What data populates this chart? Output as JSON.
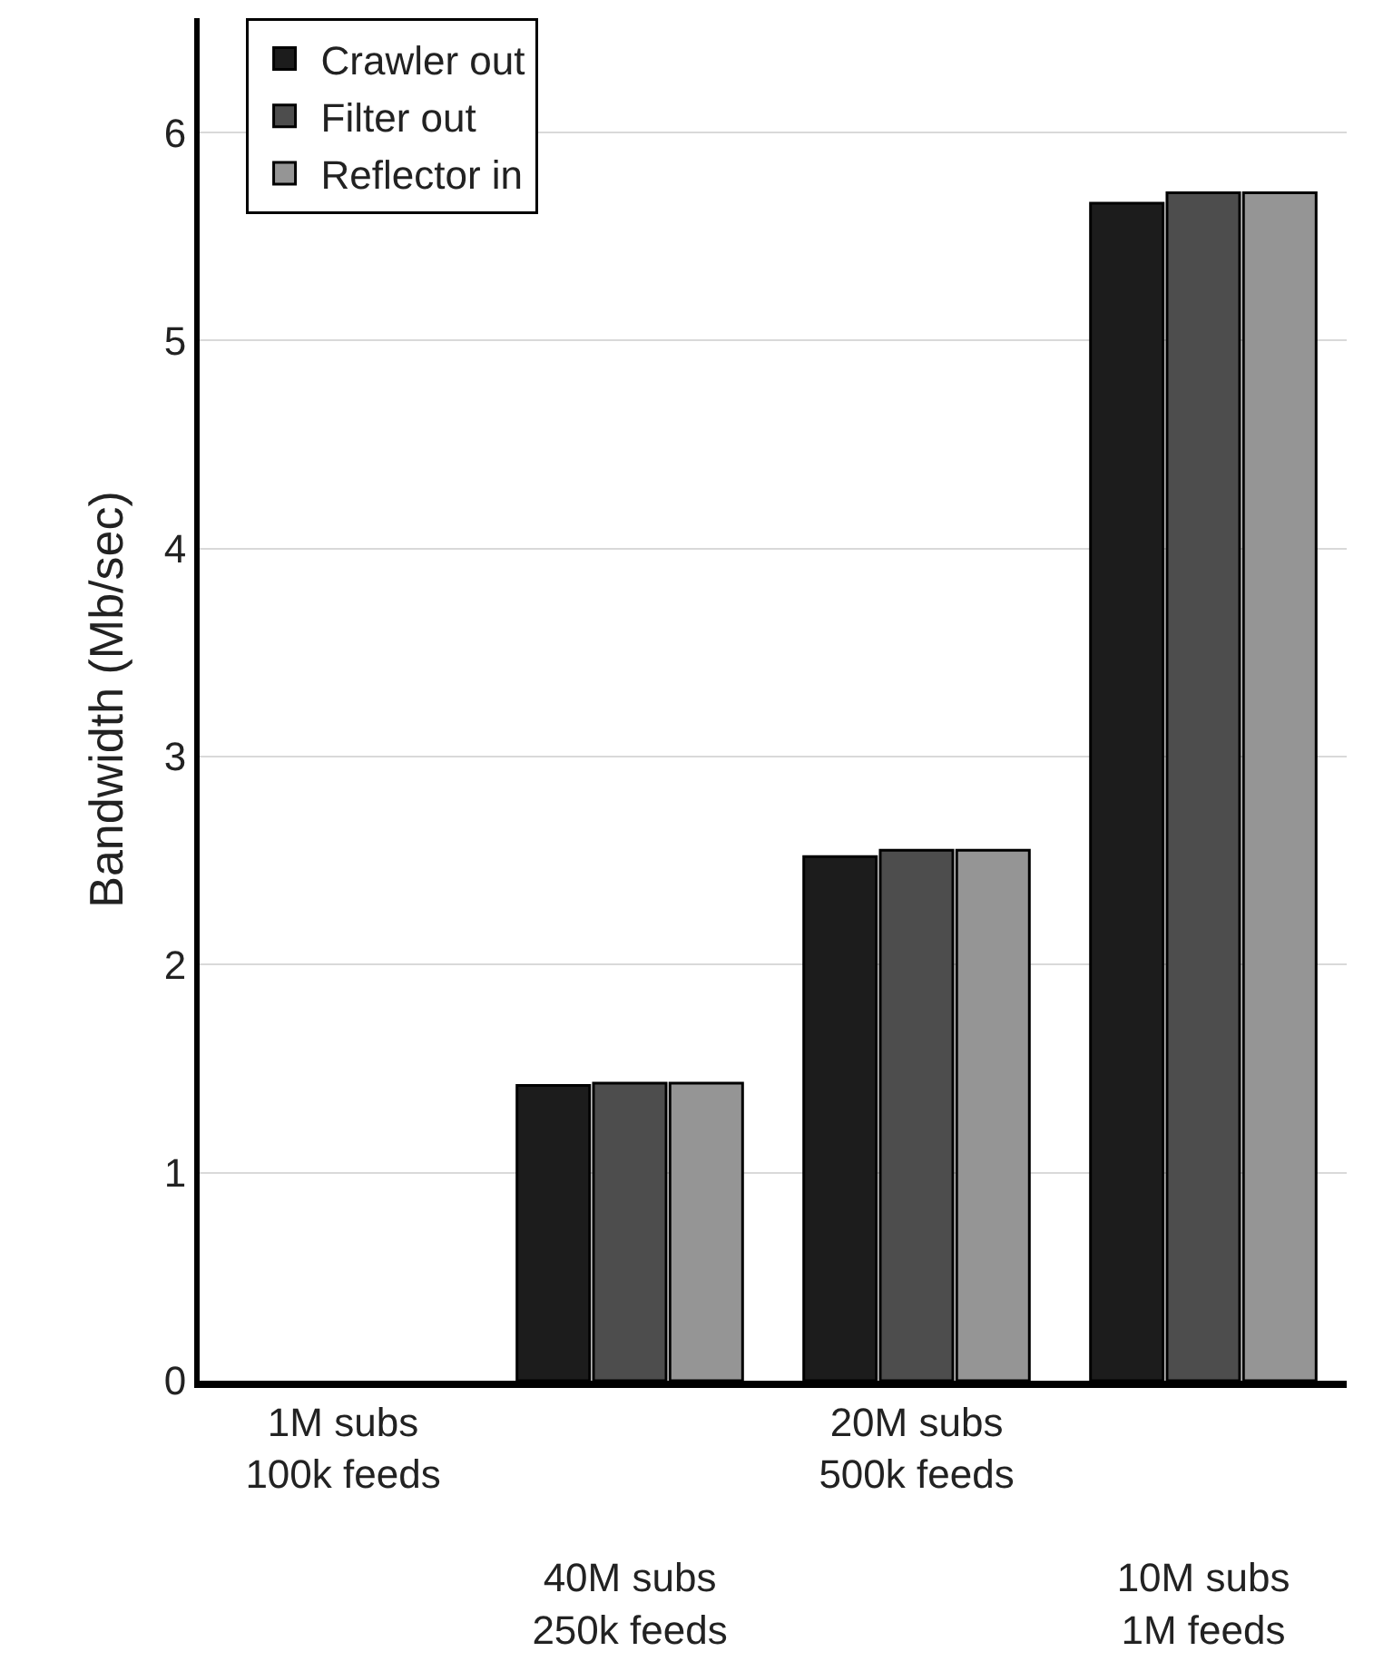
{
  "chart_data": {
    "type": "bar",
    "ylabel": "Bandwidth (Mb/sec)",
    "categories": [
      "1M subs\n100k feeds",
      "40M subs\n250k feeds",
      "20M subs\n500k feeds",
      "10M subs\n1M feeds"
    ],
    "series": [
      {
        "name": "Crawler out",
        "color": "#1c1c1c",
        "values": [
          null,
          1.42,
          2.52,
          5.66
        ]
      },
      {
        "name": "Filter out",
        "color": "#4d4d4d",
        "values": [
          null,
          1.43,
          2.55,
          5.71
        ]
      },
      {
        "name": "Reflector in",
        "color": "#959595",
        "values": [
          null,
          1.43,
          2.55,
          5.71
        ]
      }
    ],
    "ylim": [
      0,
      6.55
    ],
    "yticks": [
      0,
      1,
      2,
      3,
      4,
      5,
      6
    ],
    "grid": "y",
    "legend": "top left"
  }
}
